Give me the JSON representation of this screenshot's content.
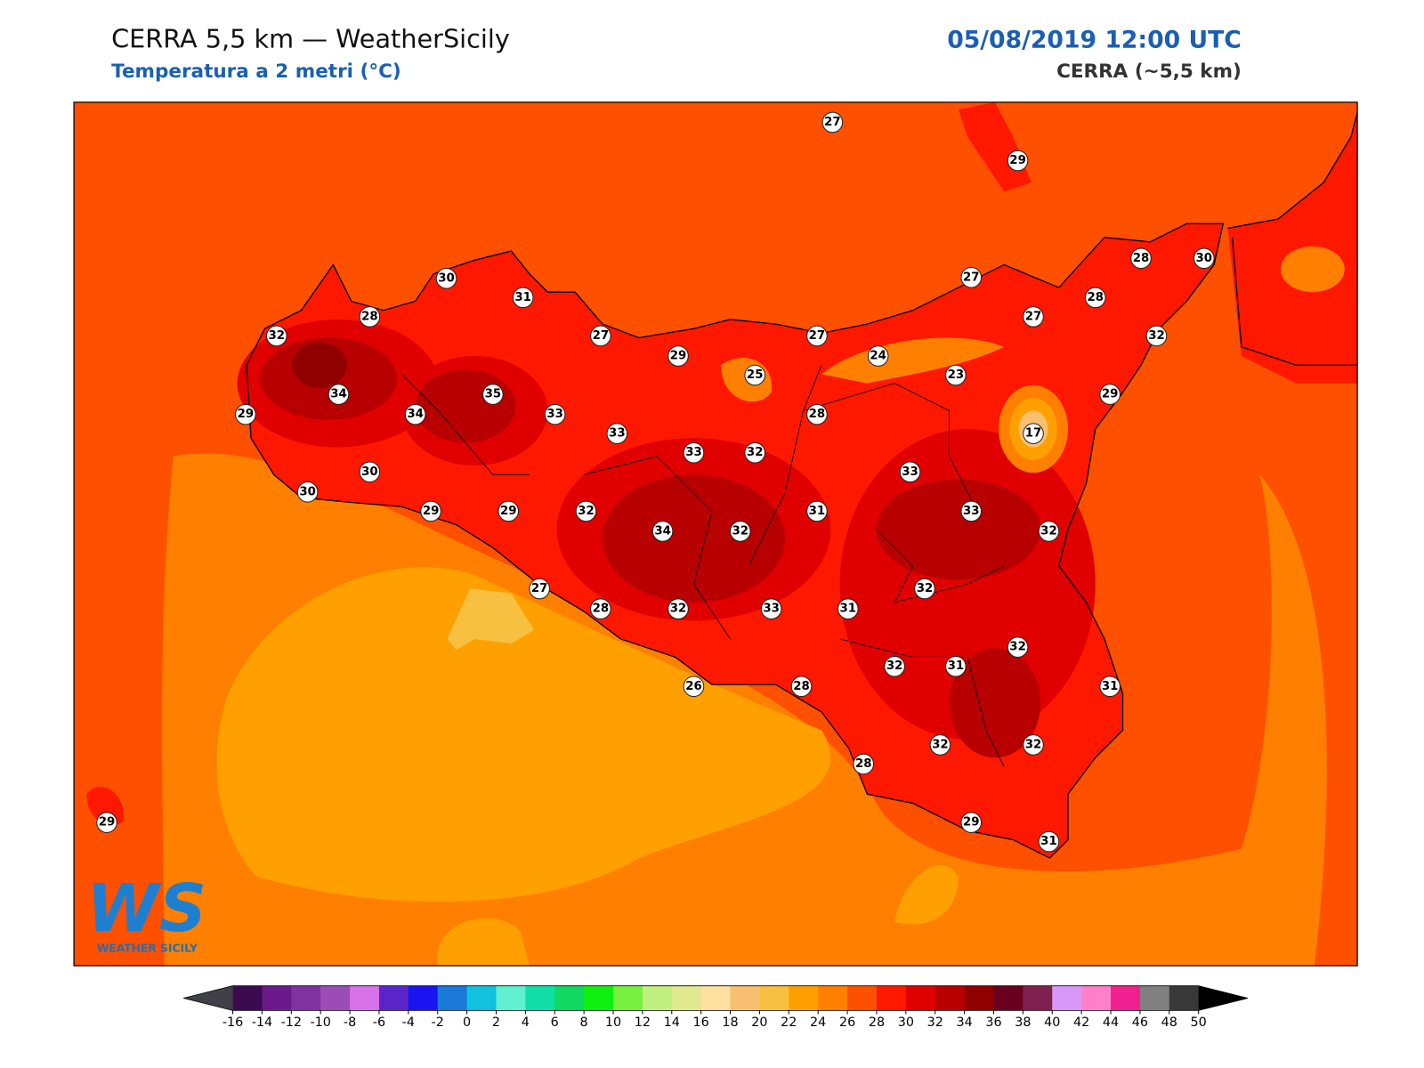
{
  "header": {
    "title": "CERRA 5,5 km — WeatherSicily",
    "subtitle": "Temperatura a 2 metri (°C)",
    "datetime": "05/08/2019 12:00 UTC",
    "model": "CERRA (~5,5 km)"
  },
  "stations": [
    27,
    29,
    30,
    31,
    28,
    30,
    27,
    28,
    28,
    27,
    32,
    27,
    27,
    32,
    29,
    24,
    25,
    23,
    34,
    35,
    29,
    29,
    34,
    33,
    28,
    33,
    17,
    33,
    32,
    30,
    33,
    30,
    29,
    29,
    32,
    31,
    33,
    34,
    32,
    32,
    27,
    32,
    28,
    32,
    33,
    31,
    32,
    32,
    31,
    26,
    28,
    31,
    32,
    32,
    28,
    29,
    31,
    29
  ],
  "colorbar": {
    "ticks": [
      -16,
      -14,
      -12,
      -10,
      -8,
      -6,
      -4,
      -2,
      0,
      2,
      4,
      6,
      8,
      10,
      12,
      14,
      16,
      18,
      20,
      22,
      24,
      26,
      28,
      30,
      32,
      34,
      36,
      38,
      40,
      42,
      44,
      46,
      48,
      50
    ],
    "colors": [
      "#3b0a4f",
      "#6a1a8a",
      "#7e33a0",
      "#9c4db5",
      "#d872e8",
      "#5a24c8",
      "#1a14f0",
      "#1a78d8",
      "#12c0e0",
      "#5ff0d0",
      "#10e0a8",
      "#10d860",
      "#10f010",
      "#78f040",
      "#c0f080",
      "#e0e890",
      "#ffe0a0",
      "#f8c070",
      "#f8c040",
      "#ffa000",
      "#ff8000",
      "#ff5000",
      "#ff1800",
      "#e00000",
      "#b80000",
      "#900000",
      "#6a0020",
      "#802050",
      "#d898f8",
      "#ff80c8",
      "#f02090",
      "#808080",
      "#383838"
    ],
    "under": "#404048",
    "over": "#000000"
  },
  "logo": {
    "mark": "WS",
    "text": "WEATHER SICILY"
  }
}
